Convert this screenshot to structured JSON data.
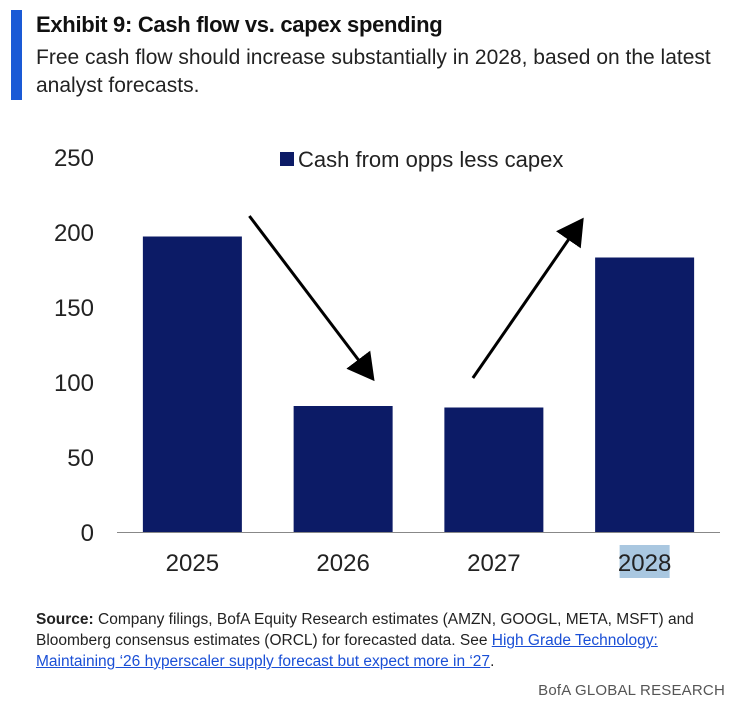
{
  "header": {
    "title": "Exhibit 9: Cash flow vs. capex spending",
    "subtitle": "Free cash flow should increase substantially in 2028, based on the latest analyst forecasts."
  },
  "chart_data": {
    "type": "bar",
    "categories": [
      "2025",
      "2026",
      "2027",
      "2028"
    ],
    "series": [
      {
        "name": "Cash from opps less capex",
        "values": [
          197,
          84,
          83,
          183
        ],
        "color": "#0c1b66"
      }
    ],
    "ylim": [
      0,
      250
    ],
    "yticks": [
      "0",
      "50",
      "100",
      "150",
      "200",
      "250"
    ],
    "legend_position": "top-center",
    "grid": false,
    "highlighted_category": "2028",
    "annotations": [
      {
        "type": "arrow",
        "direction": "down",
        "from_category": "2025",
        "to_category": "2026"
      },
      {
        "type": "arrow",
        "direction": "up",
        "from_category": "2027",
        "to_category": "2028"
      }
    ]
  },
  "footer": {
    "source_label": "Source:",
    "source_text": " Company filings, BofA Equity Research estimates (AMZN, GOOGL, META, MSFT) and Bloomberg consensus estimates (ORCL) for forecasted data. See ",
    "source_link": "High Grade Technology: Maintaining ‘26 hyperscaler supply forecast but expect more in ‘27",
    "source_end": ".",
    "brand": "BofA GLOBAL RESEARCH"
  }
}
